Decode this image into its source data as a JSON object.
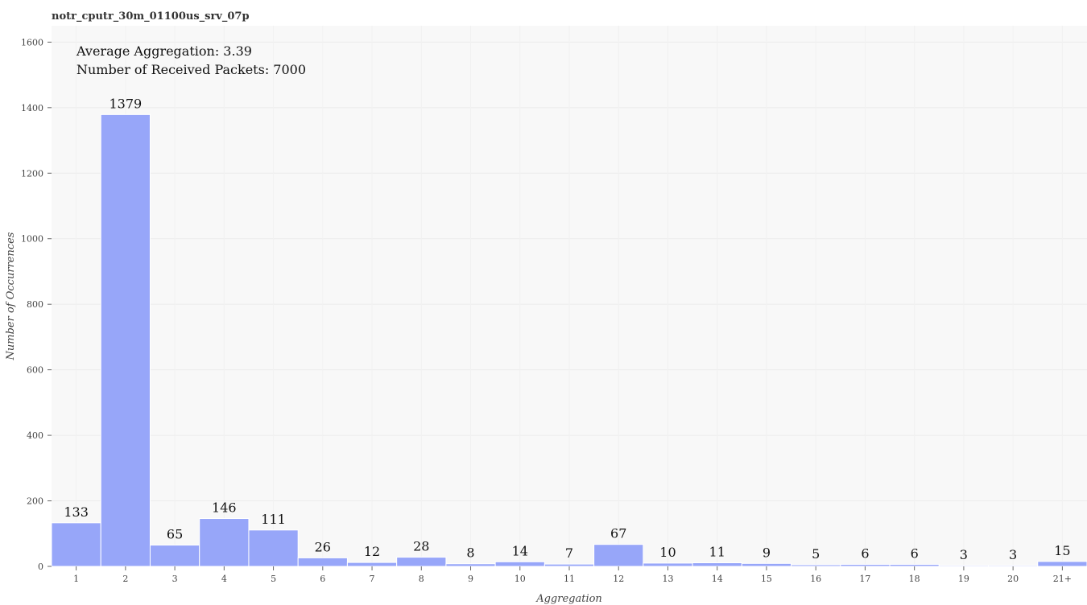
{
  "chart_data": {
    "type": "bar",
    "title": "notr_cputr_30m_01100us_srv_07p",
    "xlabel": "Aggregation",
    "ylabel": "Number of Occurrences",
    "categories": [
      "1",
      "2",
      "3",
      "4",
      "5",
      "6",
      "7",
      "8",
      "9",
      "10",
      "11",
      "12",
      "13",
      "14",
      "15",
      "16",
      "17",
      "18",
      "19",
      "20",
      "21+"
    ],
    "values": [
      133,
      1379,
      65,
      146,
      111,
      26,
      12,
      28,
      8,
      14,
      7,
      67,
      10,
      11,
      9,
      5,
      6,
      6,
      3,
      3,
      15
    ],
    "ylim": [
      0,
      1650
    ],
    "yticks": [
      0,
      200,
      400,
      600,
      800,
      1000,
      1200,
      1400,
      1600
    ],
    "grid": true,
    "bar_color": "#97a6f9",
    "background_color": "#f8f8f8",
    "annotations": [
      "Average Aggregation: 3.39",
      "Number of Received Packets: 7000"
    ]
  }
}
